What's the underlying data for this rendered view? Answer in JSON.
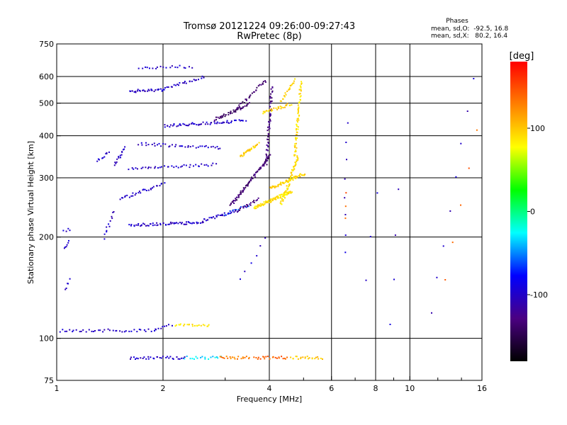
{
  "chart_data": {
    "type": "scatter",
    "title": "Tromsø 20121224 09:26:00-09:27:43",
    "subtitle": "RwPretec (8p)",
    "xlabel": "Frequency [MHz]",
    "ylabel": "Stationary phase Virtual Height [km]",
    "x_scale": "log",
    "y_scale": "log",
    "xlim": [
      1,
      16
    ],
    "ylim": [
      75,
      750
    ],
    "x_ticks": [
      {
        "value": 1,
        "label": "1"
      },
      {
        "value": 2,
        "label": "2"
      },
      {
        "value": 4,
        "label": "4"
      },
      {
        "value": 6,
        "label": "6"
      },
      {
        "value": 8,
        "label": "8"
      },
      {
        "value": 10,
        "label": "10"
      },
      {
        "value": 16,
        "label": "16"
      }
    ],
    "x_minor_ticks": [
      3,
      5,
      7,
      9,
      12,
      14
    ],
    "x_grid": [
      2,
      4,
      6,
      8,
      10
    ],
    "y_ticks": [
      {
        "value": 75,
        "label": "75"
      },
      {
        "value": 100,
        "label": "100"
      },
      {
        "value": 200,
        "label": "200"
      },
      {
        "value": 300,
        "label": "300"
      },
      {
        "value": 400,
        "label": "400"
      },
      {
        "value": 500,
        "label": "500"
      },
      {
        "value": 600,
        "label": "600"
      },
      {
        "value": 750,
        "label": "750"
      }
    ],
    "y_grid": [
      100,
      200,
      300,
      400,
      500,
      600
    ],
    "grid": true,
    "phases_box": {
      "title": "Phases",
      "line_o": "mean, sd,O:  -92.5, 16.8",
      "line_x": "mean, sd,X:   80.2, 16.4"
    },
    "colorbar": {
      "label": "[deg]",
      "range": [
        -180,
        180
      ],
      "ticks": [
        {
          "value": 100,
          "label": "100"
        },
        {
          "value": 0,
          "label": "0"
        },
        {
          "value": -100,
          "label": "-100"
        }
      ],
      "colors": [
        "#000000",
        "#4b0082",
        "#0000ff",
        "#00ffff",
        "#00ff00",
        "#ffff00",
        "#ff8000",
        "#ff0000"
      ]
    },
    "series": [
      {
        "segments": [
          {
            "f0": 1.0,
            "f1": 1.9,
            "h0": 106,
            "h1": 106,
            "phase": -100,
            "n": 42
          },
          {
            "f0": 1.9,
            "f1": 2.1,
            "h0": 107,
            "h1": 110,
            "phase": -100,
            "n": 8
          },
          {
            "f0": 2.15,
            "f1": 2.7,
            "h0": 110,
            "h1": 110,
            "phase": 90,
            "n": 22
          },
          {
            "f0": 1.6,
            "f1": 2.3,
            "h0": 88,
            "h1": 88,
            "phase": -100,
            "n": 32
          },
          {
            "f0": 2.3,
            "f1": 2.9,
            "h0": 88,
            "h1": 88,
            "phase": -30,
            "n": 18
          },
          {
            "f0": 2.9,
            "f1": 3.5,
            "h0": 88,
            "h1": 88,
            "phase": 130,
            "n": 20
          },
          {
            "f0": 3.6,
            "f1": 4.5,
            "h0": 88,
            "h1": 88,
            "phase": 140,
            "n": 22
          },
          {
            "f0": 4.6,
            "f1": 5.6,
            "h0": 88,
            "h1": 88,
            "phase": 100,
            "n": 22
          },
          {
            "f0": 1.05,
            "f1": 1.08,
            "h0": 185,
            "h1": 195,
            "phase": -100,
            "n": 6
          },
          {
            "f0": 1.05,
            "f1": 1.08,
            "h0": 140,
            "h1": 150,
            "phase": -100,
            "n": 5
          },
          {
            "f0": 1.04,
            "f1": 1.08,
            "h0": 210,
            "h1": 212,
            "phase": -100,
            "n": 4
          },
          {
            "f0": 1.6,
            "f1": 2.6,
            "h0": 218,
            "h1": 222,
            "phase": -100,
            "n": 60
          },
          {
            "f0": 2.6,
            "f1": 3.2,
            "h0": 225,
            "h1": 240,
            "phase": -100,
            "n": 28
          },
          {
            "f0": 3.0,
            "f1": 3.5,
            "h0": 235,
            "h1": 250,
            "phase": -60,
            "n": 10
          },
          {
            "f0": 3.2,
            "f1": 3.7,
            "h0": 240,
            "h1": 260,
            "phase": -130,
            "n": 22
          },
          {
            "f0": 3.6,
            "f1": 4.6,
            "h0": 245,
            "h1": 275,
            "phase": 90,
            "n": 90
          },
          {
            "f0": 4.3,
            "f1": 4.8,
            "h0": 250,
            "h1": 350,
            "phase": 90,
            "n": 60
          },
          {
            "f0": 4.0,
            "f1": 5.0,
            "h0": 280,
            "h1": 310,
            "phase": 95,
            "n": 60
          },
          {
            "f0": 4.7,
            "f1": 4.9,
            "h0": 350,
            "h1": 580,
            "phase": 90,
            "n": 60
          },
          {
            "f0": 3.1,
            "f1": 4.0,
            "h0": 250,
            "h1": 350,
            "phase": -135,
            "n": 80
          },
          {
            "f0": 3.9,
            "f1": 4.05,
            "h0": 330,
            "h1": 560,
            "phase": -130,
            "n": 55
          },
          {
            "f0": 2.0,
            "f1": 3.4,
            "h0": 430,
            "h1": 445,
            "phase": -100,
            "n": 60
          },
          {
            "f0": 2.8,
            "f1": 3.5,
            "h0": 450,
            "h1": 500,
            "phase": -140,
            "n": 40
          },
          {
            "f0": 3.2,
            "f1": 3.9,
            "h0": 480,
            "h1": 590,
            "phase": -140,
            "n": 30
          },
          {
            "f0": 3.3,
            "f1": 3.7,
            "h0": 350,
            "h1": 380,
            "phase": 95,
            "n": 30
          },
          {
            "f0": 3.8,
            "f1": 4.6,
            "h0": 470,
            "h1": 500,
            "phase": 95,
            "n": 30
          },
          {
            "f0": 4.3,
            "f1": 4.7,
            "h0": 510,
            "h1": 590,
            "phase": 95,
            "n": 20
          },
          {
            "f0": 1.6,
            "f1": 2.0,
            "h0": 545,
            "h1": 550,
            "phase": -100,
            "n": 30
          },
          {
            "f0": 2.0,
            "f1": 2.6,
            "h0": 555,
            "h1": 600,
            "phase": -100,
            "n": 25
          },
          {
            "f0": 1.7,
            "f1": 2.4,
            "h0": 640,
            "h1": 645,
            "phase": -100,
            "n": 20
          },
          {
            "f0": 1.7,
            "f1": 2.9,
            "h0": 380,
            "h1": 370,
            "phase": -100,
            "n": 40
          },
          {
            "f0": 1.6,
            "f1": 2.8,
            "h0": 320,
            "h1": 330,
            "phase": -100,
            "n": 40
          },
          {
            "f0": 1.5,
            "f1": 2.0,
            "h0": 260,
            "h1": 290,
            "phase": -100,
            "n": 30
          },
          {
            "f0": 1.45,
            "f1": 1.55,
            "h0": 330,
            "h1": 370,
            "phase": -100,
            "n": 15
          },
          {
            "f0": 1.35,
            "f1": 1.45,
            "h0": 200,
            "h1": 240,
            "phase": -100,
            "n": 12
          },
          {
            "f0": 1.3,
            "f1": 1.4,
            "h0": 340,
            "h1": 360,
            "phase": -100,
            "n": 10
          },
          {
            "f0": 3.3,
            "f1": 3.9,
            "h0": 150,
            "h1": 200,
            "phase": -100,
            "n": 6
          },
          {
            "f0": 6.5,
            "f1": 6.6,
            "h0": 180,
            "h1": 440,
            "phase": -100,
            "n": 8
          },
          {
            "f0": 6.5,
            "f1": 6.6,
            "h0": 230,
            "h1": 270,
            "phase": 140,
            "n": 3
          },
          {
            "f0": 7.5,
            "f1": 8.0,
            "h0": 150,
            "h1": 270,
            "phase": -100,
            "n": 3
          },
          {
            "f0": 8.8,
            "f1": 9.2,
            "h0": 110,
            "h1": 280,
            "phase": -100,
            "n": 4
          },
          {
            "f0": 11.5,
            "f1": 15.0,
            "h0": 120,
            "h1": 600,
            "phase": -100,
            "n": 8
          },
          {
            "f0": 12.5,
            "f1": 15.5,
            "h0": 150,
            "h1": 420,
            "phase": 140,
            "n": 5
          }
        ]
      }
    ]
  }
}
